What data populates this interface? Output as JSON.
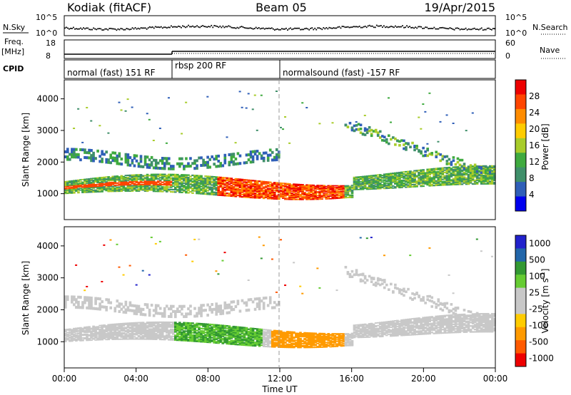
{
  "header": {
    "radar": "Kodiak (fitACF)",
    "beam": "Beam 05",
    "date": "19/Apr/2015"
  },
  "top_panels": {
    "nsky_label": "N.Sky",
    "nsearch_label": "N.Search",
    "freq_label": "Freq.",
    "freq_unit": "[MHz]",
    "nave_label": "Nave",
    "cpid_label": "CPID",
    "noise_ticks_left": [
      "10^5",
      "10^0"
    ],
    "noise_ticks_right": [
      "10^5",
      "10^0"
    ],
    "freq_ticks": [
      "18",
      "8"
    ],
    "nave_ticks": [
      "60",
      "0"
    ]
  },
  "cpid_segments": [
    {
      "label": "normal (fast) 151 RF",
      "start_hour": 0,
      "end_hour": 6
    },
    {
      "label": "rbsp 200 RF",
      "start_hour": 6,
      "end_hour": 12
    },
    {
      "label": "normalsound (fast) -157 RF",
      "start_hour": 12,
      "end_hour": 24
    }
  ],
  "colors": {
    "power_scale": [
      "#0000ee",
      "#2f5fb8",
      "#3f8f6a",
      "#3faa3f",
      "#a8cc2a",
      "#ffcc00",
      "#ff8c00",
      "#ff4500",
      "#ee0000"
    ],
    "velocity_scale": [
      "#ee0000",
      "#ff5a00",
      "#ff9a00",
      "#ffcc00",
      "#c8c8c8",
      "#c8c8c8",
      "#66cc33",
      "#339933",
      "#2266aa",
      "#2222cc"
    ]
  },
  "chart_data": [
    {
      "type": "heatmap",
      "title": "Power",
      "xlabel": "",
      "ylabel": "Slant Range [km]",
      "xlim_hours": [
        0,
        24
      ],
      "ylim_km": [
        180,
        4600
      ],
      "y_ticks": [
        1000,
        2000,
        3000,
        4000
      ],
      "colorbar": {
        "label": "Power [dB]",
        "ticks": [
          4,
          8,
          12,
          16,
          20,
          24,
          28
        ],
        "range": [
          0,
          32
        ]
      },
      "features": [
        {
          "name": "main band",
          "hours": [
            0,
            16
          ],
          "range_km": [
            1000,
            1500
          ],
          "power_db": [
            10,
            30
          ]
        },
        {
          "name": "intense region",
          "hours": [
            8.5,
            15.5
          ],
          "range_km": [
            900,
            1600
          ],
          "power_db": [
            24,
            30
          ]
        },
        {
          "name": "upper band",
          "hours": [
            0.5,
            12
          ],
          "range_km": [
            1800,
            2500
          ],
          "power_db": [
            4,
            16
          ]
        },
        {
          "name": "recovery arc",
          "hours": [
            15.5,
            24
          ],
          "range_km": [
            1300,
            3300
          ],
          "power_db": [
            4,
            20
          ]
        }
      ]
    },
    {
      "type": "heatmap",
      "title": "Velocity",
      "xlabel": "Time UT",
      "ylabel": "Slant Range [km]",
      "xlim_hours": [
        0,
        24
      ],
      "ylim_km": [
        180,
        4600
      ],
      "y_ticks": [
        1000,
        2000,
        3000,
        4000
      ],
      "x_ticks": [
        "00:00",
        "04:00",
        "08:00",
        "12:00",
        "16:00",
        "20:00",
        "00:00"
      ],
      "colorbar": {
        "label": "Velocity [m s^-1]",
        "ticks": [
          1000,
          500,
          100,
          25,
          -25,
          -100,
          -500,
          -1000
        ]
      },
      "features": [
        {
          "name": "ground scatter",
          "hours": [
            0,
            24
          ],
          "range_km": [
            900,
            1600
          ],
          "velocity_ms": [
            -25,
            25
          ]
        },
        {
          "name": "positive flow",
          "hours": [
            6,
            11
          ],
          "range_km": [
            900,
            1700
          ],
          "velocity_ms": [
            100,
            500
          ]
        },
        {
          "name": "negative flow",
          "hours": [
            11.5,
            15.5
          ],
          "range_km": [
            1000,
            1600
          ],
          "velocity_ms": [
            -500,
            -100
          ]
        }
      ]
    }
  ],
  "xaxis_label": "Time UT",
  "x_ticks": [
    "00:00",
    "04:00",
    "08:00",
    "12:00",
    "16:00",
    "20:00",
    "00:00"
  ]
}
